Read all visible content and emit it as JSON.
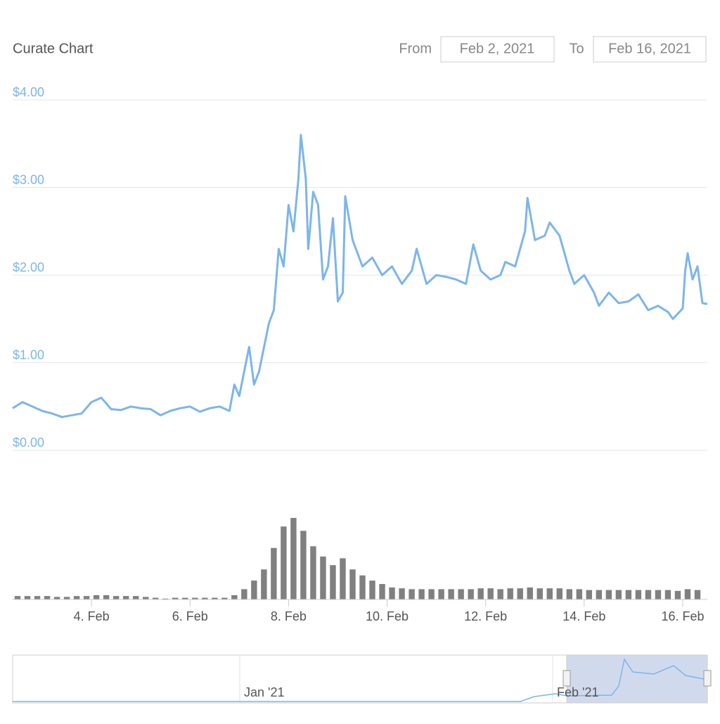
{
  "header": {
    "title": "Curate Chart",
    "from_label": "From",
    "from_value": "Feb 2, 2021",
    "to_label": "To",
    "to_value": "Feb 16, 2021"
  },
  "navigator": {
    "labels": [
      "Jan '21",
      "Feb '21"
    ]
  },
  "chart_data": [
    {
      "type": "line",
      "color": "#7cb5ec",
      "grid": true,
      "x": [
        2.4,
        2.6,
        2.8,
        3.0,
        3.2,
        3.4,
        3.6,
        3.8,
        4.0,
        4.2,
        4.4,
        4.6,
        4.8,
        5.0,
        5.2,
        5.4,
        5.6,
        5.8,
        6.0,
        6.2,
        6.4,
        6.6,
        6.8,
        6.9,
        7.0,
        7.2,
        7.3,
        7.4,
        7.6,
        7.7,
        7.8,
        7.9,
        8.0,
        8.1,
        8.2,
        8.25,
        8.35,
        8.4,
        8.5,
        8.6,
        8.7,
        8.8,
        8.9,
        9.0,
        9.1,
        9.15,
        9.3,
        9.5,
        9.7,
        9.9,
        10.1,
        10.3,
        10.5,
        10.6,
        10.8,
        11.0,
        11.2,
        11.4,
        11.6,
        11.75,
        11.9,
        12.1,
        12.3,
        12.4,
        12.6,
        12.8,
        12.85,
        13.0,
        13.2,
        13.3,
        13.5,
        13.7,
        13.8,
        13.9,
        14.0,
        14.2,
        14.3,
        14.5,
        14.7,
        14.9,
        15.1,
        15.3,
        15.5,
        15.7,
        15.8,
        16.0,
        16.05,
        16.1,
        16.2,
        16.3,
        16.4,
        16.5
      ],
      "values": [
        0.48,
        0.55,
        0.5,
        0.45,
        0.42,
        0.38,
        0.4,
        0.42,
        0.55,
        0.6,
        0.47,
        0.46,
        0.5,
        0.48,
        0.47,
        0.4,
        0.45,
        0.48,
        0.5,
        0.44,
        0.48,
        0.5,
        0.45,
        0.75,
        0.62,
        1.18,
        0.75,
        0.9,
        1.45,
        1.6,
        2.3,
        2.1,
        2.8,
        2.5,
        3.1,
        3.6,
        3.1,
        2.3,
        2.95,
        2.8,
        1.95,
        2.1,
        2.65,
        1.7,
        1.8,
        2.9,
        2.4,
        2.1,
        2.2,
        2.0,
        2.1,
        1.9,
        2.05,
        2.3,
        1.9,
        2.0,
        1.98,
        1.95,
        1.9,
        2.35,
        2.05,
        1.95,
        2.0,
        2.15,
        2.1,
        2.5,
        2.88,
        2.4,
        2.45,
        2.6,
        2.45,
        2.05,
        1.9,
        1.95,
        2.0,
        1.8,
        1.65,
        1.8,
        1.68,
        1.7,
        1.78,
        1.6,
        1.65,
        1.58,
        1.5,
        1.62,
        2.05,
        2.25,
        1.95,
        2.1,
        1.68,
        1.67
      ],
      "xlim": [
        2.4,
        16.5
      ],
      "xticks": [
        {
          "value": 4,
          "label": "4. Feb"
        },
        {
          "value": 6,
          "label": "6. Feb"
        },
        {
          "value": 8,
          "label": "8. Feb"
        },
        {
          "value": 10,
          "label": "10. Feb"
        },
        {
          "value": 12,
          "label": "12. Feb"
        },
        {
          "value": 14,
          "label": "14. Feb"
        },
        {
          "value": 16,
          "label": "16. Feb"
        }
      ],
      "ylim": [
        0,
        4
      ],
      "yticks": [
        {
          "value": 0,
          "label": "$0.00"
        },
        {
          "value": 1,
          "label": "$1.00"
        },
        {
          "value": 2,
          "label": "$2.00"
        },
        {
          "value": 3,
          "label": "$3.00"
        },
        {
          "value": 4,
          "label": "$4.00"
        }
      ]
    },
    {
      "type": "bar",
      "color": "#808080",
      "x": [
        2.5,
        2.7,
        2.9,
        3.1,
        3.3,
        3.5,
        3.7,
        3.9,
        4.1,
        4.3,
        4.5,
        4.7,
        4.9,
        5.1,
        5.3,
        5.5,
        5.7,
        5.9,
        6.1,
        6.3,
        6.5,
        6.7,
        6.9,
        7.1,
        7.3,
        7.5,
        7.7,
        7.9,
        8.1,
        8.3,
        8.5,
        8.7,
        8.9,
        9.1,
        9.3,
        9.5,
        9.7,
        9.9,
        10.1,
        10.3,
        10.5,
        10.7,
        10.9,
        11.1,
        11.3,
        11.5,
        11.7,
        11.9,
        12.1,
        12.3,
        12.5,
        12.7,
        12.9,
        13.1,
        13.3,
        13.5,
        13.7,
        13.9,
        14.1,
        14.3,
        14.5,
        14.7,
        14.9,
        15.1,
        15.3,
        15.5,
        15.7,
        15.9,
        16.1,
        16.3
      ],
      "values": [
        4,
        4,
        4,
        4,
        3,
        3,
        4,
        4,
        5,
        5,
        4,
        4,
        4,
        3,
        2,
        1,
        2,
        2,
        2,
        2,
        2,
        2,
        5,
        12,
        22,
        35,
        60,
        85,
        95,
        80,
        62,
        50,
        40,
        48,
        35,
        28,
        22,
        18,
        14,
        13,
        12,
        12,
        12,
        12,
        12,
        12,
        12,
        13,
        13,
        12,
        13,
        13,
        14,
        13,
        13,
        13,
        12,
        12,
        11,
        11,
        11,
        11,
        11,
        11,
        11,
        11,
        11,
        10,
        12,
        11
      ],
      "xlim": [
        2.4,
        16.5
      ],
      "ylim": [
        0,
        100
      ]
    }
  ]
}
